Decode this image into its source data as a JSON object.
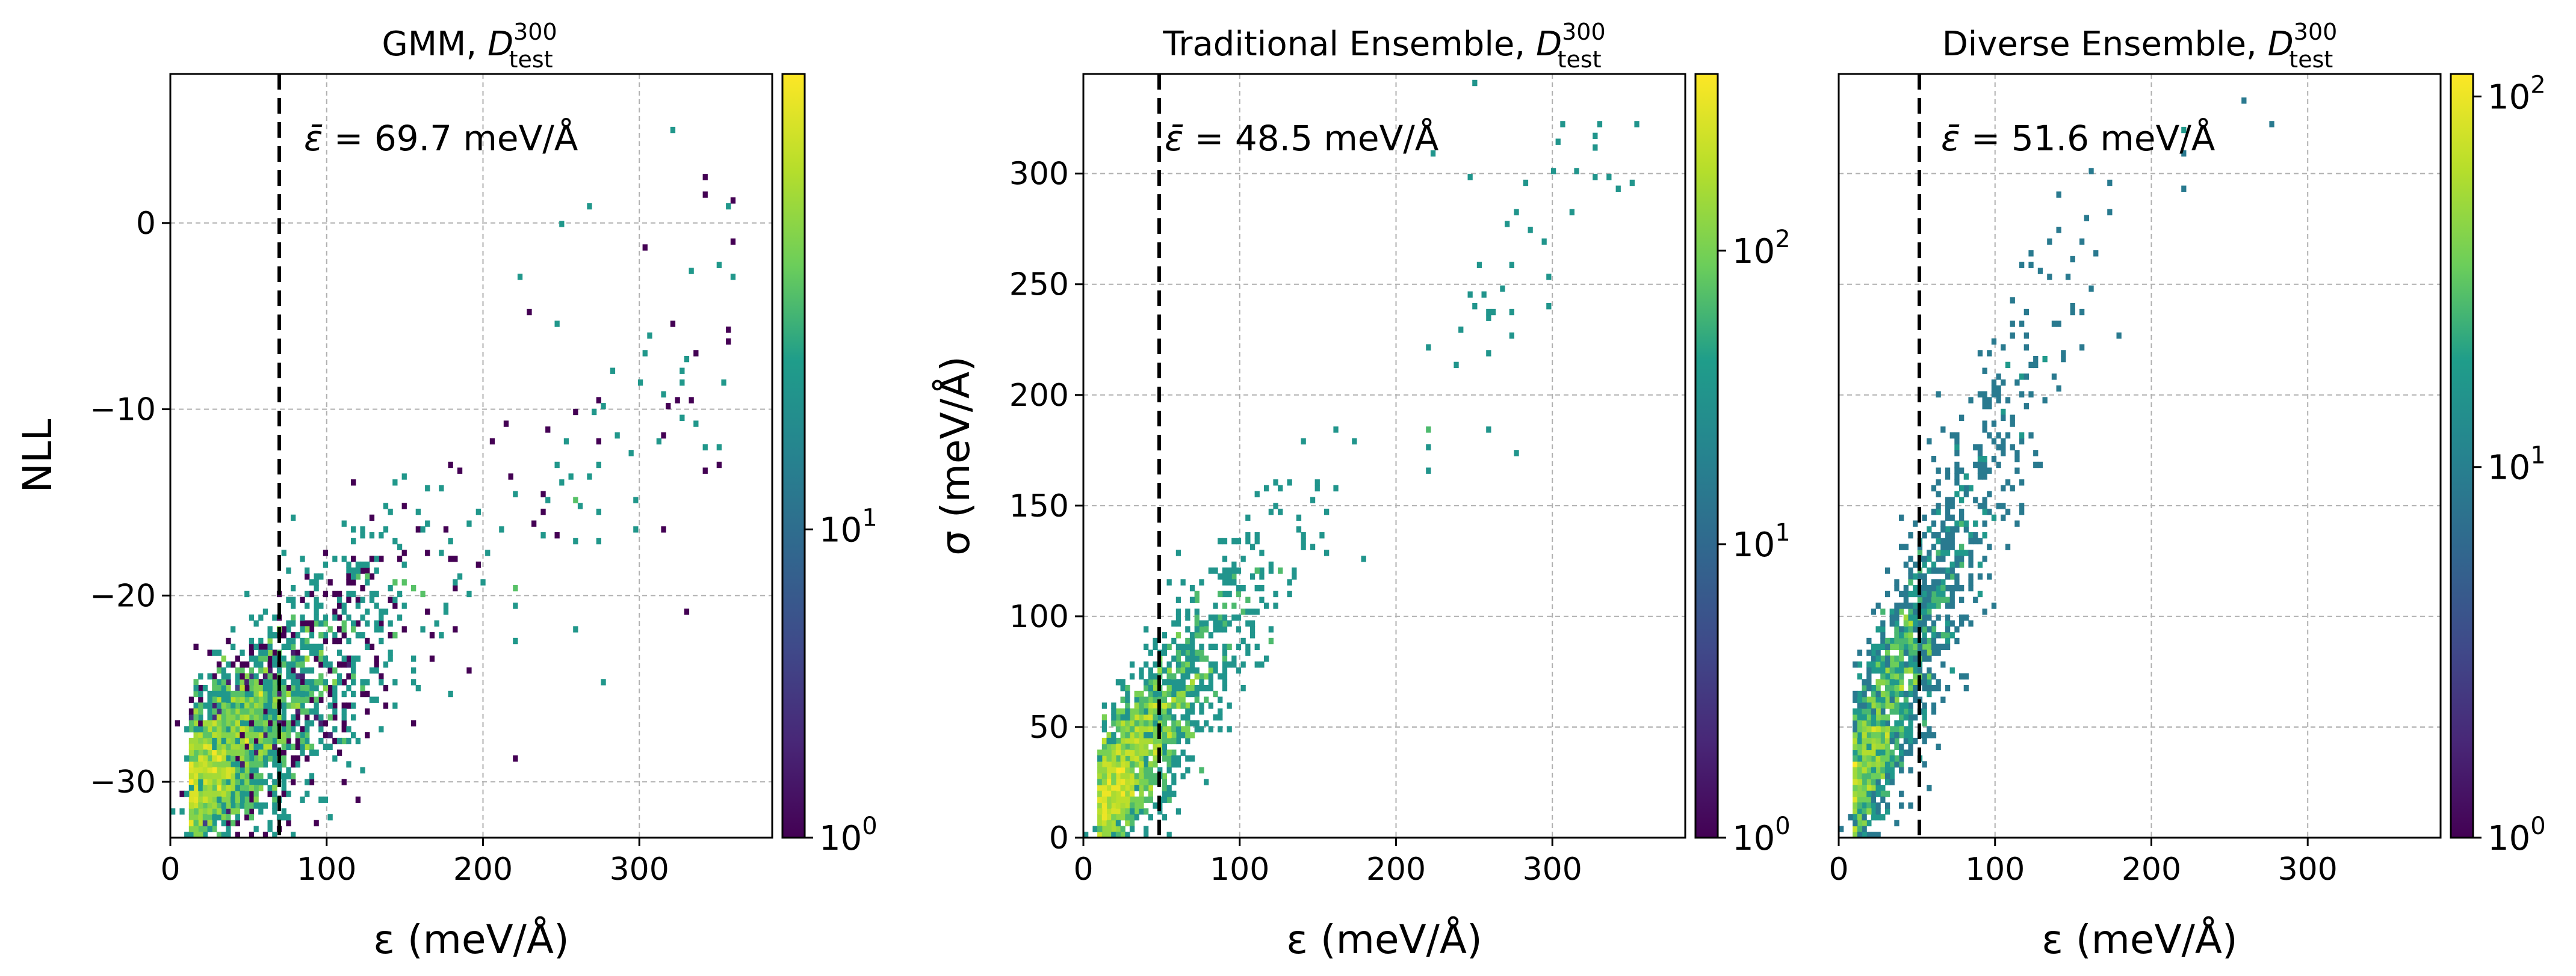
{
  "chart_data": [
    {
      "type": "heatmap",
      "id": "gmm",
      "title_main": "GMM, ",
      "title_sym": "D",
      "title_sup": "300",
      "title_sub": "test",
      "xlabel": "ε (meV/Å)",
      "ylabel": "NLL",
      "xlim": [
        0,
        385
      ],
      "ylim": [
        -33,
        8
      ],
      "xticks": [
        0,
        100,
        200,
        300
      ],
      "yticks": [
        -30,
        -20,
        -10,
        0
      ],
      "ytick_labels": [
        "−30",
        "−20",
        "−10",
        "0"
      ],
      "mean_error": 69.7,
      "annotation_sym": "ε̄",
      "annotation_value": " = 69.7 meV/Å",
      "colorbar": {
        "scale": "log",
        "min": 1,
        "max": 300,
        "ticks": [
          1,
          10
        ],
        "labels": [
          {
            "base": "10",
            "exp": "0"
          },
          {
            "base": "10",
            "exp": "1"
          }
        ]
      },
      "density": {
        "x_mode": 12,
        "x_spread": 55,
        "y_base": -31,
        "y_slope": 0.07,
        "y_sd": 3.0,
        "peak_count": 300,
        "bins": [
          130,
          130
        ]
      }
    },
    {
      "type": "heatmap",
      "id": "traditional",
      "title_main": "Traditional Ensemble, ",
      "title_sym": "D",
      "title_sup": "300",
      "title_sub": "test",
      "xlabel": "ε (meV/Å)",
      "ylabel": "σ (meV/Å)",
      "xlim": [
        0,
        385
      ],
      "ylim": [
        0,
        345
      ],
      "xticks": [
        0,
        100,
        200,
        300
      ],
      "yticks": [
        0,
        50,
        100,
        150,
        200,
        250,
        300
      ],
      "ytick_labels": [
        "0",
        "50",
        "100",
        "150",
        "200",
        "250",
        "300"
      ],
      "mean_error": 48.5,
      "annotation_sym": "ε̄",
      "annotation_value": " = 48.5 meV/Å",
      "colorbar": {
        "scale": "log",
        "min": 1,
        "max": 400,
        "ticks": [
          1,
          10,
          100
        ],
        "labels": [
          {
            "base": "10",
            "exp": "0"
          },
          {
            "base": "10",
            "exp": "1"
          },
          {
            "base": "10",
            "exp": "2"
          }
        ]
      },
      "density": {
        "x_mode": 10,
        "x_spread": 42,
        "y_base": 5,
        "y_slope": 0.95,
        "y_sd": 22,
        "peak_count": 400,
        "bins": [
          130,
          130
        ]
      }
    },
    {
      "type": "heatmap",
      "id": "diverse",
      "title_main": "Diverse Ensemble, ",
      "title_sym": "D",
      "title_sup": "300",
      "title_sub": "test",
      "xlabel": "ε (meV/Å)",
      "ylabel": "",
      "xlim": [
        0,
        385
      ],
      "ylim": [
        0,
        345
      ],
      "xticks": [
        0,
        100,
        200,
        300
      ],
      "yticks": [],
      "ytick_labels": [],
      "mean_error": 51.6,
      "annotation_sym": "ε̄",
      "annotation_value": " = 51.6 meV/Å",
      "colorbar": {
        "scale": "log",
        "min": 1,
        "max": 115,
        "ticks": [
          1,
          10,
          100
        ],
        "labels": [
          {
            "base": "10",
            "exp": "0"
          },
          {
            "base": "10",
            "exp": "1"
          },
          {
            "base": "10",
            "exp": "2"
          }
        ]
      },
      "density": {
        "x_mode": 9,
        "x_spread": 45,
        "y_base": 8,
        "y_slope": 1.6,
        "y_sd": 30,
        "peak_count": 115,
        "bins": [
          130,
          130
        ]
      }
    }
  ]
}
